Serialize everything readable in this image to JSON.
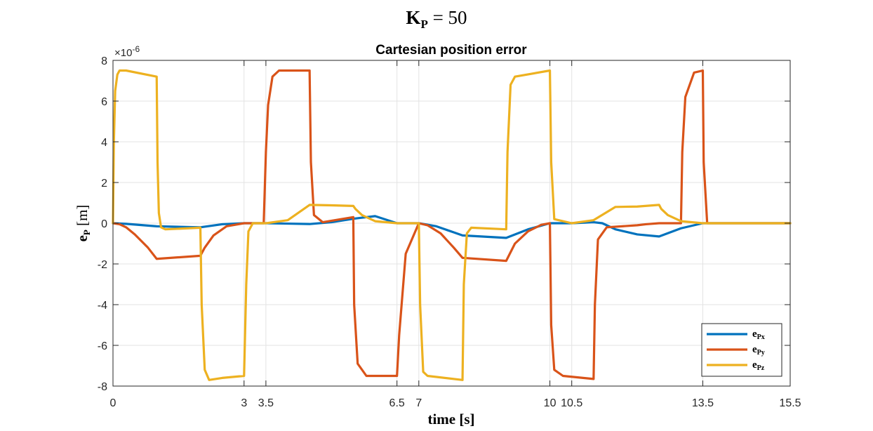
{
  "chart_data": {
    "type": "line",
    "suptitle": "K_P = 50",
    "suptitle_parts": {
      "main": "K",
      "sub": "P",
      "rest": " = 50"
    },
    "title": "Cartesian position error",
    "xlabel": "time [s]",
    "ylabel_parts": {
      "main": "e",
      "sub": "P",
      "rest": " [m]"
    },
    "y_exponent": "×10",
    "y_exponent_power": "-6",
    "xlim": [
      0,
      15.5
    ],
    "ylim": [
      -8,
      8
    ],
    "x_ticks": [
      0,
      3,
      3.5,
      6.5,
      7,
      10,
      10.5,
      13.5,
      15.5
    ],
    "x_tick_labels": [
      "0",
      "3",
      "3.5",
      "6.5",
      "7",
      "10",
      "10.5",
      "13.5",
      "15.5"
    ],
    "y_ticks": [
      -8,
      -6,
      -4,
      -2,
      0,
      2,
      4,
      6,
      8
    ],
    "y_tick_labels": [
      "-8",
      "-6",
      "-4",
      "-2",
      "0",
      "2",
      "4",
      "6",
      "8"
    ],
    "grid": true,
    "legend_position": "bottom-right",
    "series": [
      {
        "name": "e_Px",
        "label_main": "e",
        "label_sub": "Px",
        "color": "#0072BD",
        "x": [
          0,
          0.3,
          1.0,
          2.0,
          2.5,
          3.0,
          3.5,
          4.0,
          4.5,
          5.0,
          5.5,
          6.0,
          6.5,
          7.0,
          7.4,
          7.8,
          8.0,
          9.0,
          9.5,
          10.0,
          10.5,
          11.0,
          11.2,
          11.5,
          12.0,
          12.5,
          13.0,
          13.5,
          15.5
        ],
        "values": [
          0,
          -0.03,
          -0.15,
          -0.2,
          -0.05,
          0,
          0,
          -0.02,
          -0.04,
          0.05,
          0.22,
          0.35,
          0,
          0,
          -0.15,
          -0.45,
          -0.6,
          -0.72,
          -0.3,
          0,
          0,
          0.05,
          0,
          -0.3,
          -0.55,
          -0.65,
          -0.25,
          0,
          0
        ]
      },
      {
        "name": "e_Py",
        "label_main": "e",
        "label_sub": "Py",
        "color": "#D95319",
        "x": [
          0,
          0.15,
          0.3,
          0.5,
          0.8,
          1.0,
          2.0,
          2.1,
          2.3,
          2.6,
          3.0,
          3.45,
          3.5,
          3.55,
          3.65,
          3.8,
          4.5,
          4.53,
          4.6,
          4.8,
          5.5,
          5.52,
          5.6,
          5.8,
          6.5,
          6.55,
          6.7,
          7.0,
          7.2,
          7.5,
          7.8,
          8.0,
          9.0,
          9.2,
          9.5,
          9.8,
          10.0,
          10.03,
          10.1,
          10.3,
          11.0,
          11.03,
          11.1,
          11.3,
          12.0,
          12.2,
          12.5,
          13.0,
          13.03,
          13.1,
          13.3,
          13.5,
          13.52,
          13.6,
          15.5
        ],
        "values": [
          0,
          -0.05,
          -0.2,
          -0.55,
          -1.2,
          -1.75,
          -1.6,
          -1.2,
          -0.6,
          -0.15,
          0,
          0,
          3.5,
          5.8,
          7.2,
          7.5,
          7.5,
          3.0,
          0.4,
          0.05,
          0.3,
          -4.0,
          -6.9,
          -7.5,
          -7.5,
          -5.5,
          -1.5,
          0,
          -0.1,
          -0.5,
          -1.2,
          -1.7,
          -1.85,
          -1.0,
          -0.4,
          -0.08,
          0,
          -5.0,
          -7.2,
          -7.5,
          -7.65,
          -4.0,
          -0.8,
          -0.2,
          -0.1,
          -0.05,
          0,
          0,
          3.5,
          6.2,
          7.4,
          7.5,
          3.0,
          0,
          0
        ]
      },
      {
        "name": "e_Pz",
        "label_main": "e",
        "label_sub": "Pz",
        "color": "#EDB120",
        "x": [
          0,
          0.02,
          0.05,
          0.1,
          0.15,
          0.3,
          1.0,
          1.02,
          1.05,
          1.1,
          1.2,
          2.0,
          2.03,
          2.1,
          2.2,
          2.5,
          3.0,
          3.05,
          3.1,
          3.2,
          3.5,
          4.0,
          4.5,
          5.0,
          5.5,
          5.55,
          5.7,
          6.0,
          6.5,
          7.0,
          7.03,
          7.1,
          7.2,
          8.0,
          8.03,
          8.1,
          8.2,
          9.0,
          9.03,
          9.1,
          9.2,
          10.0,
          10.03,
          10.1,
          10.5,
          11.0,
          11.5,
          12.0,
          12.5,
          12.55,
          12.7,
          13.0,
          13.5,
          15.5
        ],
        "values": [
          0,
          4.0,
          6.5,
          7.3,
          7.5,
          7.5,
          7.2,
          3.0,
          0.5,
          -0.2,
          -0.3,
          -0.22,
          -4.0,
          -7.2,
          -7.7,
          -7.6,
          -7.5,
          -3.0,
          -0.4,
          0,
          0,
          0.15,
          0.9,
          0.88,
          0.85,
          0.7,
          0.4,
          0.1,
          0,
          0,
          -4.0,
          -7.3,
          -7.5,
          -7.7,
          -3.0,
          -0.5,
          -0.22,
          -0.3,
          3.5,
          6.8,
          7.2,
          7.5,
          3.0,
          0.2,
          0,
          0.15,
          0.8,
          0.82,
          0.9,
          0.7,
          0.4,
          0.1,
          0,
          0
        ]
      }
    ]
  }
}
